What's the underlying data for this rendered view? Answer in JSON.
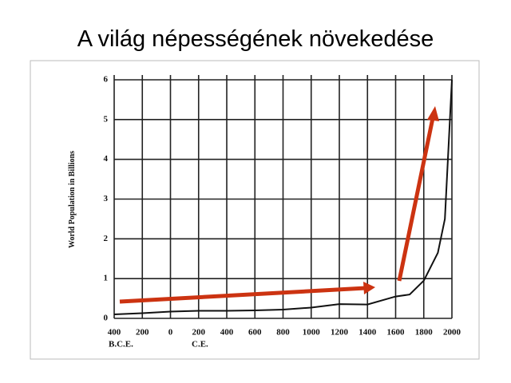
{
  "chart_data": {
    "type": "line",
    "title": "A világ népességének növekedése",
    "y_label": "World Population in Billions",
    "annotations": [
      "B.C.E.",
      "C.E."
    ],
    "x": [
      -400,
      -200,
      0,
      200,
      400,
      600,
      800,
      1000,
      1200,
      1400,
      1600,
      1700,
      1800,
      1900,
      1950,
      2000
    ],
    "series": [
      {
        "color": "#111111",
        "values": [
          0.1,
          0.13,
          0.17,
          0.19,
          0.19,
          0.2,
          0.22,
          0.27,
          0.36,
          0.35,
          0.55,
          0.6,
          0.95,
          1.65,
          2.5,
          6.0
        ]
      }
    ],
    "xlim": [
      -400,
      2000
    ],
    "xticks": [
      {
        "value": -400,
        "label": "400"
      },
      {
        "value": -200,
        "label": "200"
      },
      0,
      200,
      400,
      600,
      800,
      1000,
      1200,
      1400,
      1600,
      1800,
      2000
    ],
    "ylim": [
      0,
      6
    ],
    "yticks": [
      0,
      1,
      2,
      3,
      4,
      5,
      6
    ],
    "grid": true
  }
}
